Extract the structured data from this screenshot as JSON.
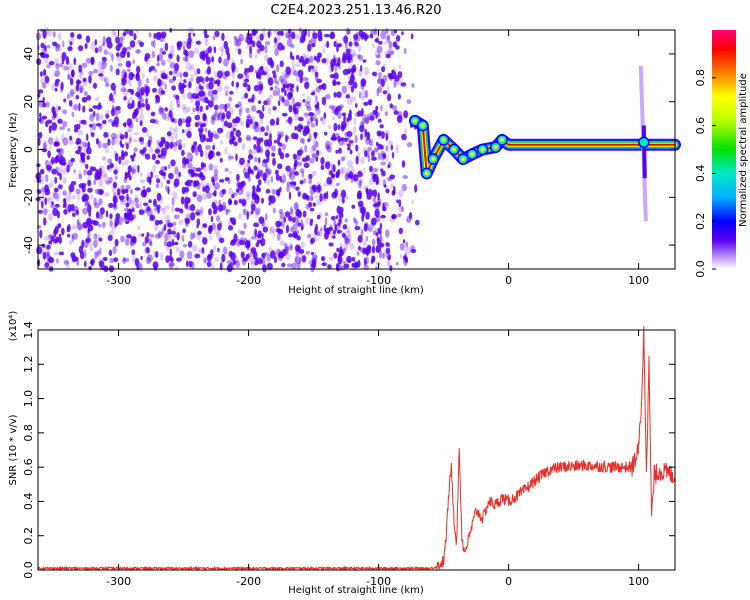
{
  "title": "C2E4.2023.251.13.46.R20",
  "colors": {
    "spectrogram_dot": "#5a00f0",
    "snr_line": "#e8302a",
    "colormap": [
      "#ffffff",
      "#c8a8ff",
      "#5a00f0",
      "#0000ff",
      "#00b0ff",
      "#00e8c8",
      "#00e000",
      "#b8ff00",
      "#ffff00",
      "#ff8000",
      "#ff0000",
      "#ff0080"
    ]
  },
  "chart_data": [
    {
      "type": "heatmap",
      "xlabel": "Height of straight line (km)",
      "ylabel": "Frequency (Hz)",
      "xlim": [
        -362,
        128
      ],
      "ylim": [
        -50,
        50
      ],
      "x_ticks": [
        "-300",
        "-200",
        "-100",
        "0",
        "100"
      ],
      "y_ticks": [
        "-40",
        "-20",
        "0",
        "20",
        "40"
      ],
      "colorbar": {
        "label": "Normalized spectral amplitude",
        "range": [
          0.0,
          1.0
        ],
        "ticks": [
          "0.0",
          "0.2",
          "0.4",
          "0.6",
          "0.8"
        ]
      },
      "noise_region_x": [
        -362,
        -70
      ],
      "carrier_trace": [
        {
          "x": -72,
          "y": 12
        },
        {
          "x": -66,
          "y": 10
        },
        {
          "x": -63,
          "y": -10
        },
        {
          "x": -58,
          "y": -4
        },
        {
          "x": -50,
          "y": 4
        },
        {
          "x": -42,
          "y": 0
        },
        {
          "x": -35,
          "y": -4
        },
        {
          "x": -28,
          "y": -2
        },
        {
          "x": -20,
          "y": 0
        },
        {
          "x": -10,
          "y": 1
        },
        {
          "x": -5,
          "y": 4
        },
        {
          "x": 0,
          "y": 2
        },
        {
          "x": 128,
          "y": 2
        }
      ],
      "spike": {
        "x": 104,
        "y_range": [
          -30,
          35
        ]
      }
    },
    {
      "type": "line",
      "xlabel": "Height of straight line (km)",
      "ylabel": "SNR (10 * v/v)",
      "y_exponent_label": "(x10⁴)",
      "xlim": [
        -362,
        128
      ],
      "ylim": [
        0.0,
        1.4
      ],
      "x_ticks": [
        "-300",
        "-200",
        "-100",
        "0",
        "100"
      ],
      "y_ticks": [
        "0.0",
        "0.2",
        "0.4",
        "0.6",
        "0.8",
        "1.0",
        "1.2",
        "1.4"
      ],
      "series": [
        {
          "points": [
            [
              -362,
              0.01
            ],
            [
              -60,
              0.01
            ],
            [
              -55,
              0.02
            ],
            [
              -50,
              0.05
            ],
            [
              -48,
              0.2
            ],
            [
              -46,
              0.45
            ],
            [
              -44,
              0.6
            ],
            [
              -42,
              0.3
            ],
            [
              -40,
              0.15
            ],
            [
              -38,
              0.72
            ],
            [
              -36,
              0.2
            ],
            [
              -34,
              0.1
            ],
            [
              -30,
              0.2
            ],
            [
              -25,
              0.35
            ],
            [
              -20,
              0.3
            ],
            [
              -15,
              0.4
            ],
            [
              -10,
              0.38
            ],
            [
              -5,
              0.42
            ],
            [
              0,
              0.4
            ],
            [
              10,
              0.45
            ],
            [
              20,
              0.52
            ],
            [
              30,
              0.58
            ],
            [
              40,
              0.6
            ],
            [
              60,
              0.61
            ],
            [
              80,
              0.6
            ],
            [
              95,
              0.6
            ],
            [
              100,
              0.7
            ],
            [
              102,
              0.95
            ],
            [
              104,
              1.38
            ],
            [
              106,
              0.6
            ],
            [
              108,
              1.2
            ],
            [
              110,
              0.3
            ],
            [
              112,
              0.55
            ],
            [
              116,
              0.58
            ],
            [
              128,
              0.55
            ]
          ]
        }
      ]
    }
  ]
}
